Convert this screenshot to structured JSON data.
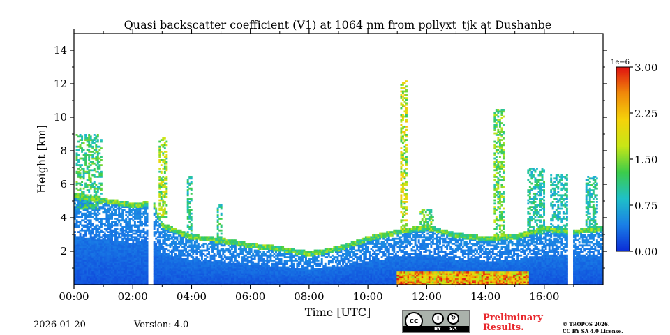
{
  "chart_data": {
    "type": "heatmap",
    "title": "Quasi backscatter coefficient (V1) at 1064 nm from pollyxt_tjk at Dushanbe",
    "xlabel": "Time [UTC]",
    "ylabel": "Height [km]",
    "xlim": [
      0,
      18
    ],
    "ylim": [
      0,
      15
    ],
    "x_ticks": [
      0,
      2,
      4,
      6,
      8,
      10,
      12,
      14,
      16
    ],
    "x_tick_labels": [
      "00:00",
      "02:00",
      "04:00",
      "06:00",
      "08:00",
      "10:00",
      "12:00",
      "14:00",
      "16:00"
    ],
    "y_ticks": [
      2,
      4,
      6,
      8,
      10,
      12,
      14
    ],
    "y_tick_labels": [
      "2",
      "4",
      "6",
      "8",
      "10",
      "12",
      "14"
    ],
    "colorbar": {
      "range": [
        0,
        3.0
      ],
      "ticks": [
        0.0,
        0.75,
        1.5,
        2.25,
        3.0
      ],
      "tick_labels": [
        "0.00",
        "0.75",
        "1.50",
        "2.25",
        "3.00"
      ],
      "scale_label": "1e−6",
      "colormap": [
        "#0a2bd6",
        "#1a7fe6",
        "#1fc0c8",
        "#3ccc4a",
        "#c8e616",
        "#f5d20a",
        "#f08a0a",
        "#e01010"
      ]
    },
    "data_gaps_hours": [
      [
        2.55,
        2.72
      ],
      [
        16.82,
        16.98
      ]
    ],
    "boundary_layer_top_km": [
      [
        0,
        5.2
      ],
      [
        1,
        4.9
      ],
      [
        2,
        4.6
      ],
      [
        2.7,
        4.7
      ],
      [
        3,
        3.4
      ],
      [
        4,
        2.7
      ],
      [
        5,
        2.5
      ],
      [
        6,
        2.2
      ],
      [
        7,
        2.0
      ],
      [
        8,
        1.7
      ],
      [
        9,
        2.0
      ],
      [
        10,
        2.6
      ],
      [
        11,
        3.0
      ],
      [
        12,
        3.3
      ],
      [
        13,
        2.8
      ],
      [
        14,
        2.6
      ],
      [
        15,
        2.7
      ],
      [
        16,
        3.2
      ],
      [
        17,
        3.0
      ],
      [
        18,
        3.2
      ]
    ],
    "plumes": [
      {
        "x": 0.5,
        "base": 4.5,
        "top": 9.0,
        "width": 0.9,
        "level": 1.3
      },
      {
        "x": 3.05,
        "base": 4.0,
        "top": 8.8,
        "width": 0.3,
        "level": 1.7
      },
      {
        "x": 3.95,
        "base": 2.8,
        "top": 6.5,
        "width": 0.2,
        "level": 1.1
      },
      {
        "x": 4.95,
        "base": 2.6,
        "top": 4.8,
        "width": 0.2,
        "level": 1.2
      },
      {
        "x": 11.2,
        "base": 3.2,
        "top": 12.2,
        "width": 0.25,
        "level": 1.9
      },
      {
        "x": 12.0,
        "base": 3.2,
        "top": 4.5,
        "width": 0.5,
        "level": 1.5
      },
      {
        "x": 14.45,
        "base": 2.9,
        "top": 10.5,
        "width": 0.35,
        "level": 1.5
      },
      {
        "x": 15.7,
        "base": 3.0,
        "top": 7.0,
        "width": 0.6,
        "level": 1.1
      },
      {
        "x": 16.5,
        "base": 3.0,
        "top": 6.6,
        "width": 0.6,
        "level": 1.0
      },
      {
        "x": 17.6,
        "base": 3.2,
        "top": 6.5,
        "width": 0.4,
        "level": 1.1
      }
    ],
    "near_ground_high_band": {
      "x_range": [
        11.0,
        15.5
      ],
      "height_km": [
        0,
        0.8
      ],
      "level": 3.0
    }
  },
  "footer": {
    "date": "2026-01-20",
    "version": "Version: 4.0",
    "cc_badge": {
      "main": "cc",
      "by": "BY",
      "sa": "SA"
    },
    "preliminary_line1": "Preliminary",
    "preliminary_line2": "Results.",
    "copyright_line1": "© TROPOS 2026.",
    "copyright_line2": "CC BY SA 4.0 License."
  }
}
